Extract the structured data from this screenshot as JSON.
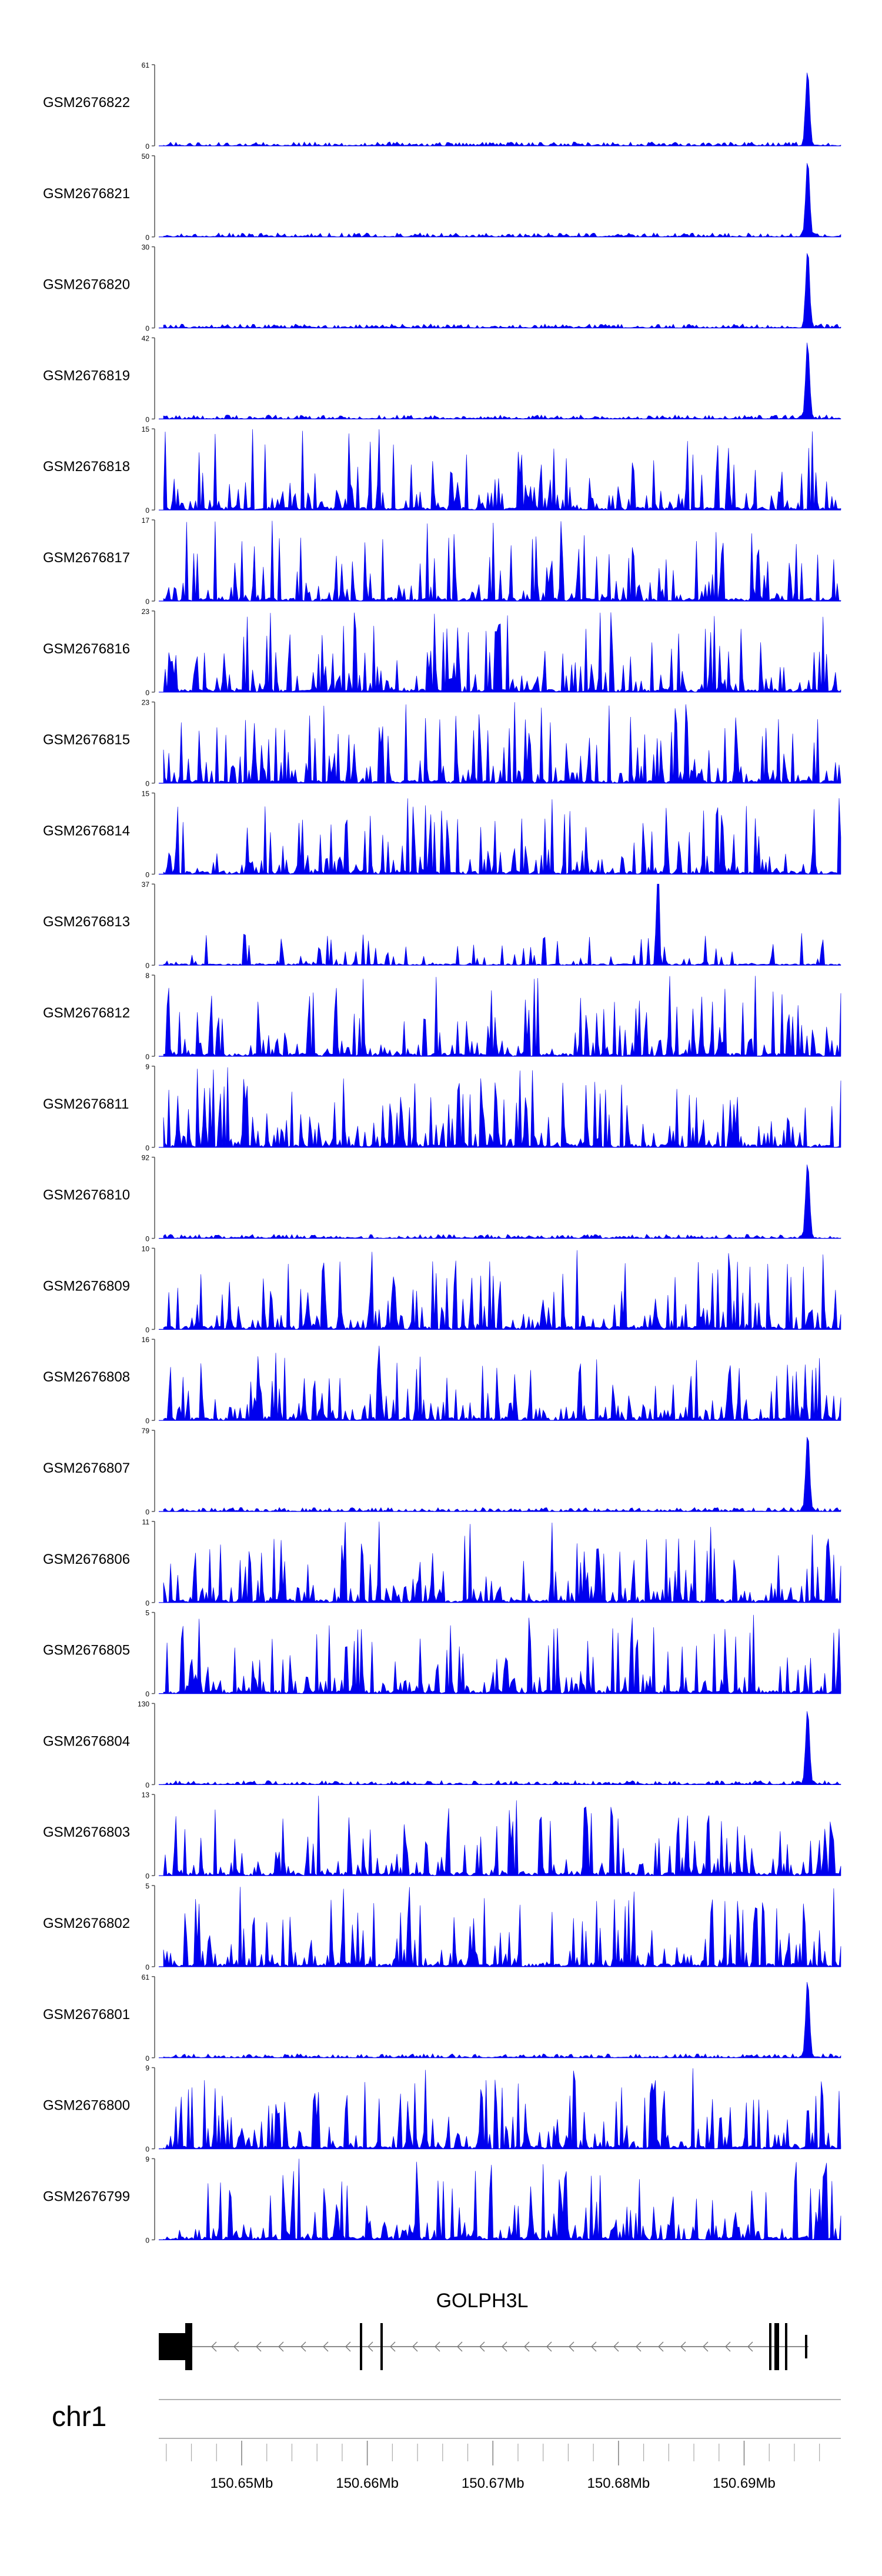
{
  "chart_data": {
    "type": "area",
    "chromosome": "chr1",
    "gene_label": "GOLPH3L",
    "x_axis": {
      "units": "Mb",
      "range": [
        150.6434,
        150.6977
      ],
      "tick_labels": [
        "150.65Mb",
        "150.66Mb",
        "150.67Mb",
        "150.68Mb",
        "150.69Mb"
      ],
      "tick_values": [
        150.65,
        150.66,
        150.67,
        150.68,
        150.69
      ]
    },
    "tracks": [
      {
        "name": "GSM2676822",
        "ymin": 0,
        "ymax": 61,
        "profile": "peak",
        "seed": 1
      },
      {
        "name": "GSM2676821",
        "ymin": 0,
        "ymax": 50,
        "profile": "peak",
        "seed": 2
      },
      {
        "name": "GSM2676820",
        "ymin": 0,
        "ymax": 30,
        "profile": "peak",
        "seed": 3
      },
      {
        "name": "GSM2676819",
        "ymin": 0,
        "ymax": 42,
        "profile": "peak",
        "seed": 4
      },
      {
        "name": "GSM2676818",
        "ymin": 0,
        "ymax": 15,
        "profile": "dense",
        "seed": 5
      },
      {
        "name": "GSM2676817",
        "ymin": 0,
        "ymax": 17,
        "profile": "dense",
        "seed": 6
      },
      {
        "name": "GSM2676816",
        "ymin": 0,
        "ymax": 23,
        "profile": "dense",
        "seed": 7
      },
      {
        "name": "GSM2676815",
        "ymin": 0,
        "ymax": 23,
        "profile": "dense",
        "seed": 8
      },
      {
        "name": "GSM2676814",
        "ymin": 0,
        "ymax": 15,
        "profile": "dense",
        "seed": 9
      },
      {
        "name": "GSM2676813",
        "ymin": 0,
        "ymax": 37,
        "profile": "sparse",
        "seed": 10
      },
      {
        "name": "GSM2676812",
        "ymin": 0,
        "ymax": 8,
        "profile": "dense",
        "seed": 11
      },
      {
        "name": "GSM2676811",
        "ymin": 0,
        "ymax": 9,
        "profile": "dense",
        "seed": 12
      },
      {
        "name": "GSM2676810",
        "ymin": 0,
        "ymax": 92,
        "profile": "peak",
        "seed": 13
      },
      {
        "name": "GSM2676809",
        "ymin": 0,
        "ymax": 10,
        "profile": "dense",
        "seed": 14
      },
      {
        "name": "GSM2676808",
        "ymin": 0,
        "ymax": 16,
        "profile": "dense",
        "seed": 15
      },
      {
        "name": "GSM2676807",
        "ymin": 0,
        "ymax": 79,
        "profile": "peak",
        "seed": 16
      },
      {
        "name": "GSM2676806",
        "ymin": 0,
        "ymax": 11,
        "profile": "dense",
        "seed": 17
      },
      {
        "name": "GSM2676805",
        "ymin": 0,
        "ymax": 5,
        "profile": "dense",
        "seed": 18
      },
      {
        "name": "GSM2676804",
        "ymin": 0,
        "ymax": 130,
        "profile": "peak",
        "seed": 19
      },
      {
        "name": "GSM2676803",
        "ymin": 0,
        "ymax": 13,
        "profile": "dense",
        "seed": 20
      },
      {
        "name": "GSM2676802",
        "ymin": 0,
        "ymax": 5,
        "profile": "dense",
        "seed": 21
      },
      {
        "name": "GSM2676801",
        "ymin": 0,
        "ymax": 61,
        "profile": "peak",
        "seed": 22
      },
      {
        "name": "GSM2676800",
        "ymin": 0,
        "ymax": 9,
        "profile": "dense",
        "seed": 23
      },
      {
        "name": "GSM2676799",
        "ymin": 0,
        "ymax": 9,
        "profile": "dense",
        "seed": 24
      }
    ]
  },
  "colors": {
    "signal": "#0000ee",
    "axis": "#555555",
    "text": "#000000",
    "gene": "#000000",
    "ideogram_line": "#999999"
  }
}
